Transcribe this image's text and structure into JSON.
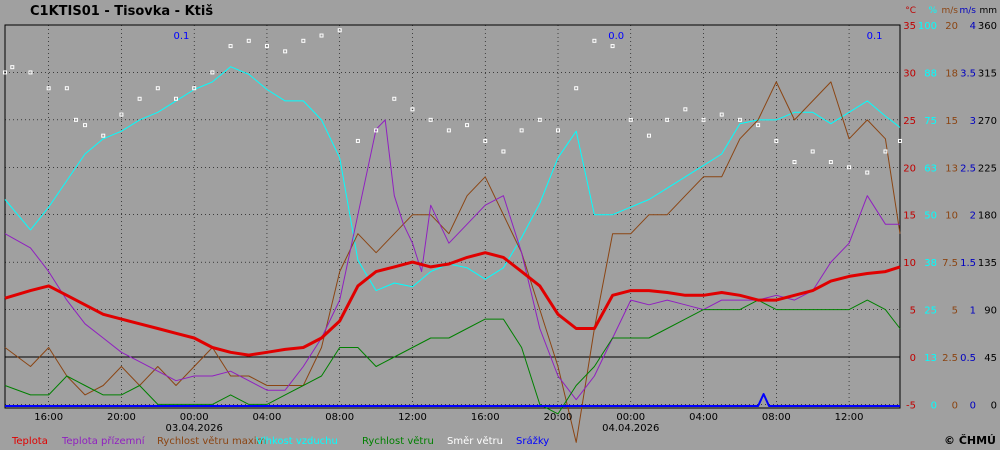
{
  "chart_data": {
    "type": "line",
    "title": "C1KTIS01 - Tisovka - Ktiš",
    "x_labels": [
      "16:00",
      "20:00",
      "00:00",
      "04:00",
      "08:00",
      "12:00",
      "16:00",
      "20:00",
      "00:00",
      "04:00",
      "08:00",
      "12:00"
    ],
    "x_hours": [
      16,
      20,
      24,
      28,
      32,
      36,
      40,
      44,
      48,
      52,
      56,
      60
    ],
    "x_range_hours": [
      13.6,
      62.8
    ],
    "date_labels": [
      {
        "hour": 24,
        "label": "03.04.2026"
      },
      {
        "hour": 48,
        "label": "04.04.2026"
      }
    ],
    "precip_labels": [
      {
        "hour": 23.3,
        "label": "0.1"
      },
      {
        "hour": 47.2,
        "label": "0.0"
      },
      {
        "hour": 61.4,
        "label": "0.1"
      }
    ],
    "axes": {
      "temperature": {
        "unit": "°C",
        "color": "#c00000",
        "ticks": [
          "35",
          "30",
          "25",
          "20",
          "15",
          "10",
          "5",
          "0",
          "-5"
        ]
      },
      "humidity": {
        "unit": "%",
        "color": "#00ffff",
        "ticks": [
          "100",
          "88",
          "75",
          "63",
          "50",
          "38",
          "25",
          "13",
          "0"
        ]
      },
      "wind_max": {
        "unit": "m/s",
        "color": "#8b4513",
        "ticks": [
          "20",
          "18",
          "15",
          "13",
          "10",
          "7.5",
          "5",
          "2.5",
          "0"
        ]
      },
      "wind": {
        "unit": "m/s",
        "color": "#0000c0",
        "ticks": [
          "4",
          "3.5",
          "3",
          "2.5",
          "2",
          "1.5",
          "1",
          "0.5",
          "0"
        ]
      },
      "direction": {
        "unit": "mm",
        "color": "#000000",
        "ticks": [
          "360",
          "315",
          "270",
          "225",
          "180",
          "135",
          "90",
          "45",
          "0"
        ]
      }
    },
    "ylim": [
      -5,
      35
    ],
    "series": [
      {
        "name": "Teplota",
        "color": "#e00000",
        "x": [
          13.6,
          15,
          16,
          17,
          18,
          19,
          20,
          21,
          22,
          23,
          24,
          25,
          26,
          27,
          28,
          29,
          30,
          31,
          32,
          33,
          34,
          35,
          36,
          37,
          38,
          39,
          40,
          41,
          42,
          43,
          44,
          45,
          46,
          47,
          48,
          49,
          50,
          51,
          52,
          53,
          54,
          55,
          56,
          57,
          58,
          59,
          60,
          61,
          62,
          62.8
        ],
        "values": [
          6.2,
          7,
          7.5,
          6.5,
          5.5,
          4.5,
          4,
          3.5,
          3,
          2.5,
          2,
          1,
          0.5,
          0.2,
          0.5,
          0.8,
          1,
          2,
          3.8,
          7.5,
          9,
          9.5,
          10,
          9.5,
          9.8,
          10.5,
          11,
          10.5,
          9,
          7.5,
          4.5,
          3,
          3,
          6.5,
          7,
          7,
          6.8,
          6.5,
          6.5,
          6.8,
          6.5,
          6,
          6,
          6.5,
          7,
          8,
          8.5,
          8.8,
          9,
          9.5
        ]
      },
      {
        "name": "Teplota přízemní",
        "color": "#9020c0",
        "x": [
          13.6,
          15,
          16,
          17,
          18,
          19,
          20,
          21,
          22,
          23,
          24,
          25,
          26,
          27,
          28,
          29,
          30,
          31,
          32,
          33,
          34,
          34.5,
          35,
          35.5,
          36,
          36.5,
          37,
          38,
          39,
          40,
          41,
          42,
          43,
          44,
          45,
          46,
          47,
          48,
          49,
          50,
          51,
          52,
          53,
          54,
          55,
          56,
          57,
          58,
          59,
          60,
          61,
          62,
          62.8
        ],
        "values": [
          13,
          11.5,
          9,
          6,
          3.5,
          2,
          0.5,
          -0.5,
          -1.5,
          -2.5,
          -2,
          -2,
          -1.5,
          -2.5,
          -3.5,
          -3.5,
          -1,
          2,
          6,
          15,
          24,
          25,
          17,
          14,
          12,
          9,
          16,
          12,
          14,
          16,
          17,
          11,
          3,
          -2,
          -4.5,
          -2,
          2,
          6,
          5.5,
          6,
          5.5,
          5,
          6,
          6,
          6,
          6.5,
          6,
          7,
          10,
          12,
          17,
          14,
          14
        ]
      },
      {
        "name": "Rychlost větru maxim",
        "color": "#8b4513",
        "x": [
          13.6,
          15,
          16,
          17,
          18,
          19,
          20,
          21,
          22,
          23,
          24,
          25,
          26,
          27,
          28,
          29,
          30,
          31,
          32,
          33,
          34,
          35,
          36,
          37,
          38,
          39,
          40,
          41,
          42,
          43,
          44,
          45,
          46,
          47,
          48,
          49,
          50,
          51,
          52,
          53,
          54,
          55,
          56,
          57,
          58,
          59,
          60,
          61,
          62,
          62.8
        ],
        "values": [
          3,
          2,
          3,
          1.5,
          0.5,
          1,
          2,
          1,
          2,
          1,
          2,
          3,
          1.5,
          1.5,
          1,
          1,
          1,
          3,
          7,
          9,
          8,
          9,
          10,
          10,
          9,
          11,
          12,
          10,
          8,
          5,
          2,
          -2,
          4,
          9,
          9,
          10,
          10,
          11,
          12,
          12,
          14,
          15,
          17,
          15,
          16,
          17,
          14,
          15,
          14,
          9
        ]
      },
      {
        "name": "Vlhkost vzduchu",
        "color": "#00ffff",
        "x": [
          13.6,
          15,
          16,
          17,
          18,
          19,
          20,
          21,
          22,
          23,
          24,
          25,
          26,
          27,
          28,
          29,
          30,
          31,
          32,
          33,
          34,
          35,
          36,
          37,
          38,
          39,
          40,
          41,
          42,
          43,
          44,
          45,
          46,
          47,
          48,
          49,
          50,
          51,
          52,
          53,
          54,
          55,
          56,
          57,
          58,
          59,
          60,
          61,
          62,
          62.8
        ],
        "values": [
          54,
          46,
          52,
          59,
          66,
          70,
          72,
          75,
          77,
          80,
          83,
          85,
          89,
          87,
          83,
          80,
          80,
          75,
          65,
          38,
          30,
          32,
          31,
          35,
          37,
          36,
          33,
          36,
          44,
          53,
          65,
          72,
          50,
          50,
          52,
          54,
          57,
          60,
          63,
          66,
          74,
          75,
          75,
          77,
          77,
          74,
          77,
          80,
          76,
          73
        ]
      },
      {
        "name": "Rychlost větru",
        "color": "#008000",
        "x": [
          13.6,
          15,
          16,
          17,
          18,
          19,
          20,
          21,
          22,
          23,
          24,
          25,
          26,
          27,
          28,
          29,
          30,
          31,
          32,
          33,
          34,
          35,
          36,
          37,
          38,
          39,
          40,
          41,
          42,
          43,
          44,
          45,
          46,
          47,
          48,
          49,
          50,
          51,
          52,
          53,
          54,
          55,
          56,
          57,
          58,
          59,
          60,
          61,
          62,
          62.8
        ],
        "values": [
          0.2,
          0.1,
          0.1,
          0.3,
          0.2,
          0.1,
          0.1,
          0.2,
          0.0,
          0.0,
          0.0,
          0.0,
          0.1,
          0.0,
          0.0,
          0.1,
          0.2,
          0.3,
          0.6,
          0.6,
          0.4,
          0.5,
          0.6,
          0.7,
          0.7,
          0.8,
          0.9,
          0.9,
          0.6,
          0.0,
          -0.1,
          0.2,
          0.4,
          0.7,
          0.7,
          0.7,
          0.8,
          0.9,
          1.0,
          1.0,
          1.0,
          1.1,
          1.0,
          1.0,
          1.0,
          1.0,
          1.0,
          1.1,
          1.0,
          0.8
        ]
      },
      {
        "name": "Směr větru",
        "color": "#ffffff",
        "type": "scatter",
        "x": [
          13.6,
          14,
          15,
          16,
          17,
          17.5,
          18,
          19,
          20,
          21,
          22,
          23,
          24,
          25,
          26,
          27,
          28,
          29,
          30,
          31,
          32,
          33,
          34,
          35,
          36,
          37,
          38,
          39,
          40,
          41,
          42,
          43,
          44,
          45,
          46,
          47,
          48,
          49,
          50,
          51,
          52,
          53,
          54,
          55,
          56,
          57,
          58,
          59,
          60,
          61,
          62,
          62.8
        ],
        "values": [
          315,
          320,
          315,
          300,
          300,
          270,
          265,
          255,
          275,
          290,
          300,
          290,
          300,
          315,
          340,
          345,
          340,
          335,
          345,
          350,
          355,
          250,
          260,
          290,
          280,
          270,
          260,
          265,
          250,
          240,
          260,
          270,
          260,
          300,
          345,
          340,
          270,
          255,
          270,
          280,
          270,
          275,
          270,
          265,
          250,
          230,
          240,
          230,
          225,
          220,
          240,
          250
        ]
      },
      {
        "name": "Srážky",
        "color": "#0000ff",
        "x": [
          13.6,
          55,
          55.3,
          55.6,
          62.8
        ],
        "values": [
          0,
          0,
          0.1,
          0,
          0
        ]
      }
    ],
    "legend": [
      "Teplota",
      "Teplota přízemní",
      "Rychlost větru maxim",
      "Vlhkost vzduchu",
      "Rychlost větru",
      "Směr větru",
      "Srážky"
    ],
    "legend_position": "bottom",
    "grid": true,
    "copyright": "© ČHMÚ"
  }
}
